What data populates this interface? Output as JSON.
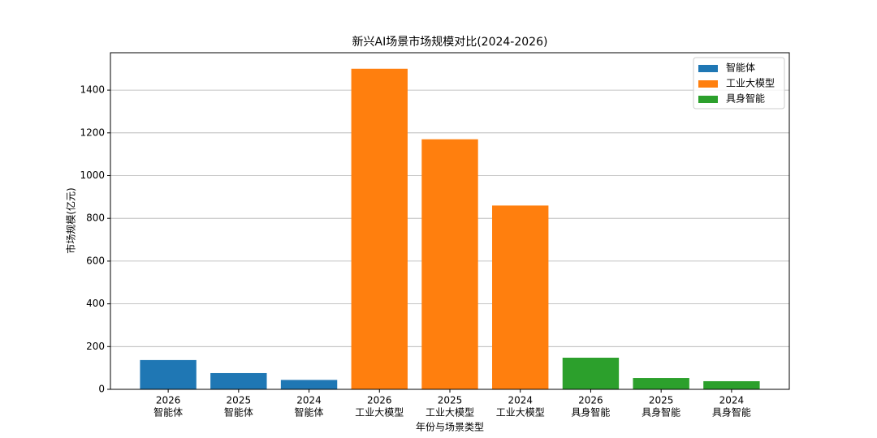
{
  "chart_data": {
    "type": "bar",
    "title": "新兴AI场景市场规模对比(2024-2026)",
    "xlabel": "年份与场景类型",
    "ylabel": "市场规模(亿元)",
    "categories": [
      [
        "2026",
        "智能体"
      ],
      [
        "2025",
        "智能体"
      ],
      [
        "2024",
        "智能体"
      ],
      [
        "2026",
        "工业大模型"
      ],
      [
        "2025",
        "工业大模型"
      ],
      [
        "2024",
        "工业大模型"
      ],
      [
        "2026",
        "具身智能"
      ],
      [
        "2025",
        "具身智能"
      ],
      [
        "2024",
        "具身智能"
      ]
    ],
    "series": [
      {
        "name": "智能体",
        "color": "#1f77b4",
        "values": [
          137,
          76,
          44,
          null,
          null,
          null,
          null,
          null,
          null
        ]
      },
      {
        "name": "工业大模型",
        "color": "#ff7f0e",
        "values": [
          null,
          null,
          null,
          1500,
          1170,
          860,
          null,
          null,
          null
        ]
      },
      {
        "name": "具身智能",
        "color": "#2ca02c",
        "values": [
          null,
          null,
          null,
          null,
          null,
          null,
          148,
          53,
          38
        ]
      }
    ],
    "ylim": [
      0,
      1575
    ],
    "yticks": [
      0,
      200,
      400,
      600,
      800,
      1000,
      1200,
      1400
    ],
    "grid": true,
    "legend": "upper right"
  }
}
